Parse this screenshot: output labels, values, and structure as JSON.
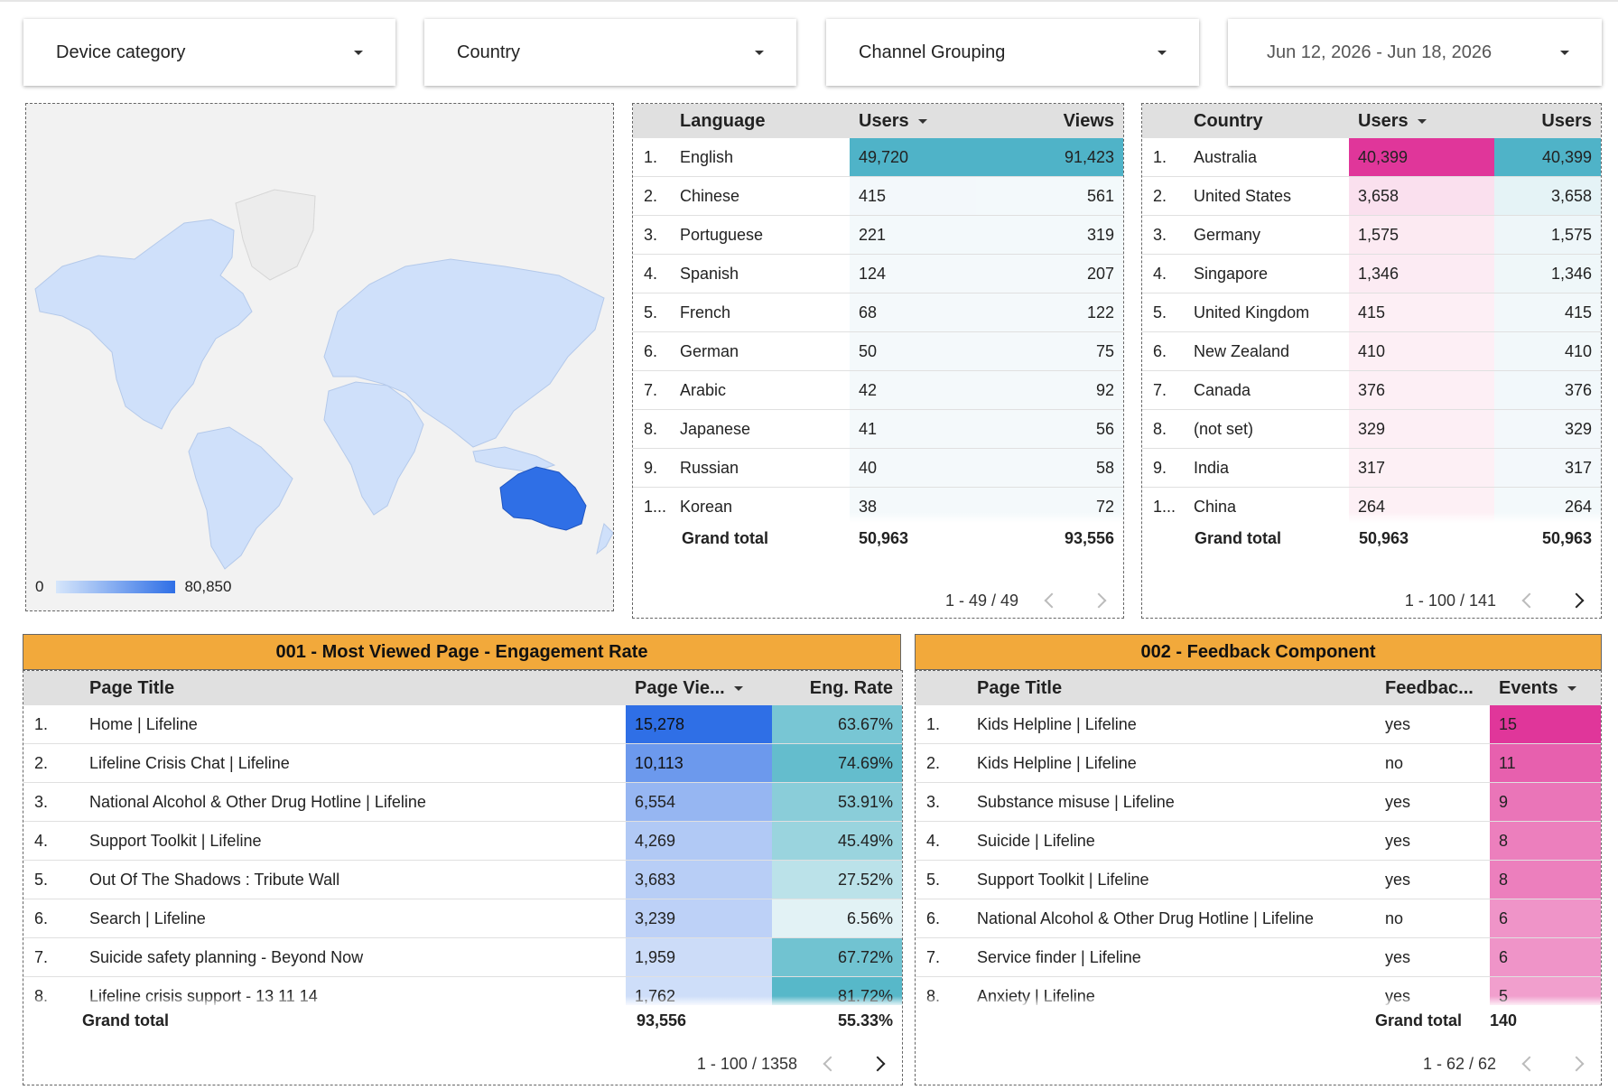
{
  "filters": {
    "device": "Device category",
    "country": "Country",
    "channel": "Channel Grouping",
    "date": "Jun 12, 2026 - Jun 18, 2026"
  },
  "map": {
    "legend_min": "0",
    "legend_max": "80,850"
  },
  "language_table": {
    "headers": [
      "Language",
      "Users",
      "Views"
    ],
    "rows": [
      {
        "idx": "1.",
        "name": "English",
        "users": "49,720",
        "views": "91,423"
      },
      {
        "idx": "2.",
        "name": "Chinese",
        "users": "415",
        "views": "561"
      },
      {
        "idx": "3.",
        "name": "Portuguese",
        "users": "221",
        "views": "319"
      },
      {
        "idx": "4.",
        "name": "Spanish",
        "users": "124",
        "views": "207"
      },
      {
        "idx": "5.",
        "name": "French",
        "users": "68",
        "views": "122"
      },
      {
        "idx": "6.",
        "name": "German",
        "users": "50",
        "views": "75"
      },
      {
        "idx": "7.",
        "name": "Arabic",
        "users": "42",
        "views": "92"
      },
      {
        "idx": "8.",
        "name": "Japanese",
        "users": "41",
        "views": "56"
      },
      {
        "idx": "9.",
        "name": "Russian",
        "users": "40",
        "views": "58"
      },
      {
        "idx": "1...",
        "name": "Korean",
        "users": "38",
        "views": "72"
      }
    ],
    "total_label": "Grand total",
    "total_users": "50,963",
    "total_views": "93,556",
    "pager": "1 - 49 / 49"
  },
  "country_table": {
    "headers": [
      "Country",
      "Users",
      "Users"
    ],
    "rows": [
      {
        "idx": "1.",
        "name": "Australia",
        "users": "40,399",
        "users2": "40,399"
      },
      {
        "idx": "2.",
        "name": "United States",
        "users": "3,658",
        "users2": "3,658"
      },
      {
        "idx": "3.",
        "name": "Germany",
        "users": "1,575",
        "users2": "1,575"
      },
      {
        "idx": "4.",
        "name": "Singapore",
        "users": "1,346",
        "users2": "1,346"
      },
      {
        "idx": "5.",
        "name": "United Kingdom",
        "users": "415",
        "users2": "415"
      },
      {
        "idx": "6.",
        "name": "New Zealand",
        "users": "410",
        "users2": "410"
      },
      {
        "idx": "7.",
        "name": "Canada",
        "users": "376",
        "users2": "376"
      },
      {
        "idx": "8.",
        "name": "(not set)",
        "users": "329",
        "users2": "329"
      },
      {
        "idx": "9.",
        "name": "India",
        "users": "317",
        "users2": "317"
      },
      {
        "idx": "1...",
        "name": "China",
        "users": "264",
        "users2": "264"
      }
    ],
    "total_label": "Grand total",
    "total_users": "50,963",
    "total_users2": "50,963",
    "pager": "1 - 100 / 141"
  },
  "pages_section": {
    "title": "001 - Most Viewed Page - Engagement Rate",
    "headers": [
      "Page Title",
      "Page Vie...",
      "Eng. Rate"
    ],
    "rows": [
      {
        "idx": "1.",
        "title": "Home | Lifeline",
        "views": "15,278",
        "rate": "63.67%"
      },
      {
        "idx": "2.",
        "title": "Lifeline Crisis Chat | Lifeline",
        "views": "10,113",
        "rate": "74.69%"
      },
      {
        "idx": "3.",
        "title": "National Alcohol & Other Drug Hotline | Lifeline",
        "views": "6,554",
        "rate": "53.91%"
      },
      {
        "idx": "4.",
        "title": "Support Toolkit | Lifeline",
        "views": "4,269",
        "rate": "45.49%"
      },
      {
        "idx": "5.",
        "title": "Out Of The Shadows : Tribute Wall",
        "views": "3,683",
        "rate": "27.52%"
      },
      {
        "idx": "6.",
        "title": "Search | Lifeline",
        "views": "3,239",
        "rate": "6.56%"
      },
      {
        "idx": "7.",
        "title": "Suicide safety planning - Beyond Now",
        "views": "1,959",
        "rate": "67.72%"
      },
      {
        "idx": "8.",
        "title": "Lifeline crisis support - 13 11 14",
        "views": "1,762",
        "rate": "81.72%"
      }
    ],
    "total_label": "Grand total",
    "total_views": "93,556",
    "total_rate": "55.33%",
    "pager": "1 - 100 / 1358"
  },
  "feedback_section": {
    "title": "002 - Feedback Component",
    "headers": [
      "Page Title",
      "Feedbac...",
      "Events"
    ],
    "rows": [
      {
        "idx": "1.",
        "title": "Kids Helpline | Lifeline",
        "feedback": "yes",
        "events": "15"
      },
      {
        "idx": "2.",
        "title": "Kids Helpline | Lifeline",
        "feedback": "no",
        "events": "11"
      },
      {
        "idx": "3.",
        "title": "Substance misuse | Lifeline",
        "feedback": "yes",
        "events": "9"
      },
      {
        "idx": "4.",
        "title": "Suicide | Lifeline",
        "feedback": "yes",
        "events": "8"
      },
      {
        "idx": "5.",
        "title": "Support Toolkit | Lifeline",
        "feedback": "yes",
        "events": "8"
      },
      {
        "idx": "6.",
        "title": "National Alcohol & Other Drug Hotline | Lifeline",
        "feedback": "no",
        "events": "6"
      },
      {
        "idx": "7.",
        "title": "Service finder | Lifeline",
        "feedback": "yes",
        "events": "6"
      },
      {
        "idx": "8.",
        "title": "Anxiety | Lifeline",
        "feedback": "yes",
        "events": "5"
      }
    ],
    "total_label": "Grand total",
    "total_events": "140",
    "pager": "1 - 62 / 62"
  }
}
